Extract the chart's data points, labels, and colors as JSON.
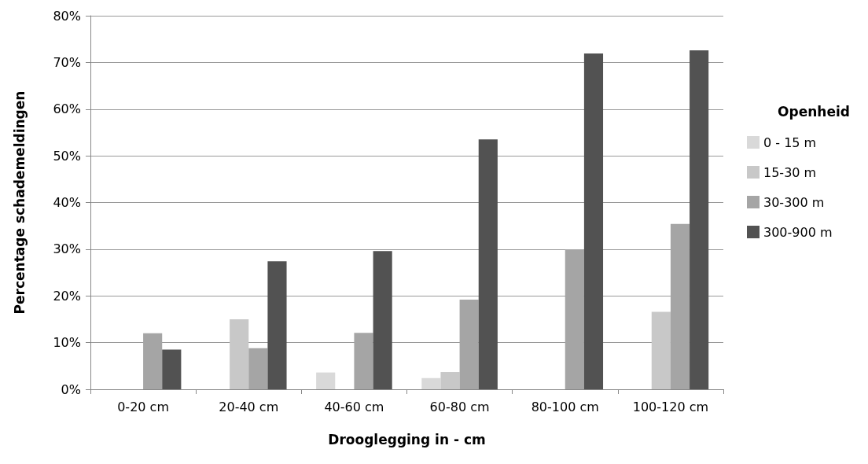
{
  "chart_data": {
    "type": "bar",
    "xlabel": "Drooglegging in - cm",
    "ylabel": "Percentage schademeldingen",
    "legend_title": "Openheid",
    "categories": [
      "0-20 cm",
      "20-40 cm",
      "40-60 cm",
      "60-80 cm",
      "80-100 cm",
      "100-120 cm"
    ],
    "series": [
      {
        "name": "0 - 15 m",
        "color": "#d9d9d9",
        "values": [
          0,
          0,
          3.6,
          2.4,
          0,
          0
        ]
      },
      {
        "name": "15-30 m",
        "color": "#c8c8c8",
        "values": [
          0,
          15,
          0,
          3.7,
          0,
          16.6
        ]
      },
      {
        "name": "30-300 m",
        "color": "#a5a5a5",
        "values": [
          12,
          8.8,
          12.1,
          19.2,
          30,
          35.4
        ]
      },
      {
        "name": "300-900 m",
        "color": "#525252",
        "values": [
          8.5,
          27.4,
          29.6,
          53.5,
          71.9,
          72.6
        ]
      }
    ],
    "ylim": [
      0,
      80
    ],
    "yticks": [
      {
        "value": 0,
        "label": "0%"
      },
      {
        "value": 10,
        "label": "10%"
      },
      {
        "value": 20,
        "label": "20%"
      },
      {
        "value": 30,
        "label": "30%"
      },
      {
        "value": 40,
        "label": "40%"
      },
      {
        "value": 50,
        "label": "50%"
      },
      {
        "value": 60,
        "label": "60%"
      },
      {
        "value": 70,
        "label": "70%"
      },
      {
        "value": 80,
        "label": "80%"
      }
    ],
    "grid": "y",
    "legend": "right"
  }
}
